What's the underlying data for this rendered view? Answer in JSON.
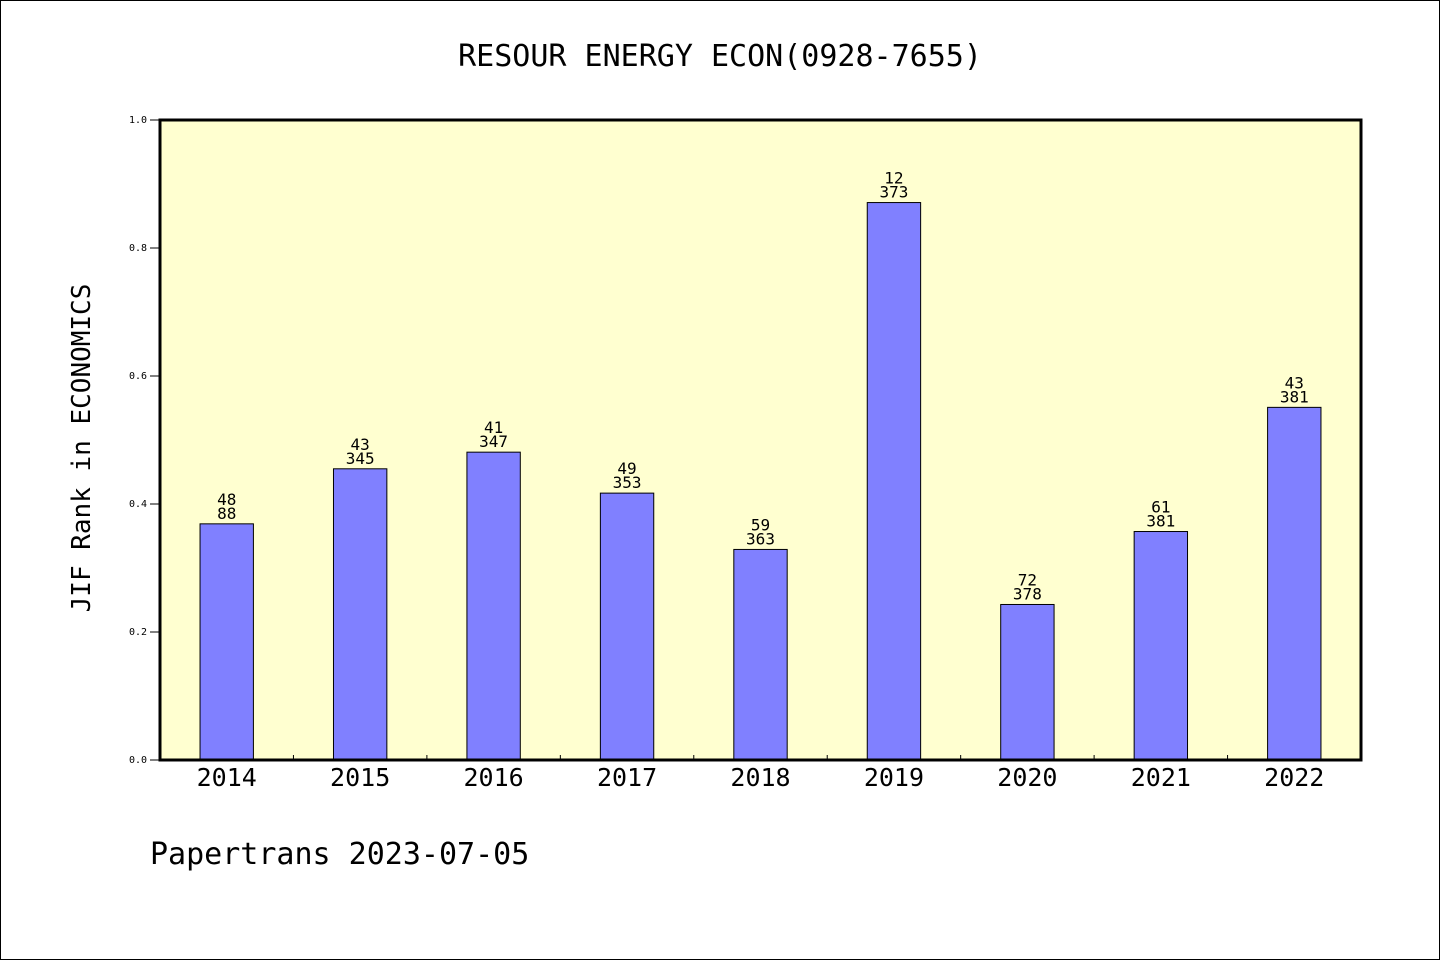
{
  "chart_data": {
    "type": "bar",
    "title": "RESOUR ENERGY ECON(0928-7655)",
    "ylabel": "JIF Rank in ECONOMICS",
    "xlabel": "",
    "ylim": [
      0,
      1.0
    ],
    "yticks": [
      "0.0",
      "0.2",
      "0.4",
      "0.6",
      "0.8",
      "1.0"
    ],
    "yticks_values": [
      0,
      0.2,
      0.4,
      0.6,
      0.8,
      1.0
    ],
    "categories": [
      "2014",
      "2015",
      "2016",
      "2017",
      "2018",
      "2019",
      "2020",
      "2021",
      "2022"
    ],
    "values": [
      0.369,
      0.455,
      0.481,
      0.417,
      0.329,
      0.871,
      0.243,
      0.357,
      0.551
    ],
    "rank": [
      "48",
      "43",
      "41",
      "49",
      "59",
      "12",
      "72",
      "61",
      "43"
    ],
    "total": [
      "88",
      "345",
      "347",
      "353",
      "363",
      "373",
      "378",
      "381",
      "381"
    ],
    "grid": false,
    "legend": "none",
    "colors": {
      "plot_background": "#ffffd0",
      "bar_fill": "#8080ff",
      "bar_stroke": "#000000"
    }
  },
  "footer": {
    "credit": "Papertrans 2023-07-05"
  }
}
